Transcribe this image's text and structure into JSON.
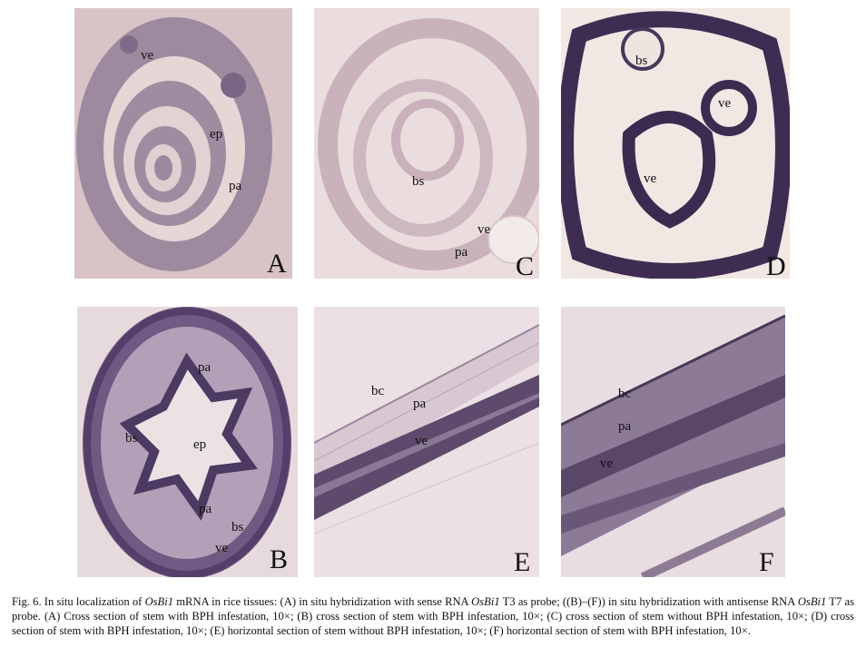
{
  "figure": {
    "panels": {
      "A": {
        "letter": "A",
        "labels": {
          "ve": "ve",
          "ep": "ep",
          "pa": "pa"
        }
      },
      "C": {
        "letter": "C",
        "labels": {
          "bs": "bs",
          "ve": "ve",
          "pa": "pa"
        }
      },
      "D": {
        "letter": "D",
        "labels": {
          "bs": "bs",
          "ve1": "ve",
          "ve2": "ve"
        }
      },
      "B": {
        "letter": "B",
        "labels": {
          "pa1": "pa",
          "bs1": "bs",
          "ep": "ep",
          "pa2": "pa",
          "bs2": "bs",
          "ve": "ve"
        }
      },
      "E": {
        "letter": "E",
        "labels": {
          "bc": "bc",
          "pa": "pa",
          "ve": "ve"
        }
      },
      "F": {
        "letter": "F",
        "labels": {
          "bc": "bc",
          "pa": "pa",
          "ve": "ve"
        }
      }
    },
    "caption": {
      "p1": "Fig. 6. In situ localization of ",
      "gene1": "OsBi1",
      "p2": " mRNA in rice tissues: (A) in situ hybridization with sense RNA ",
      "gene2": "OsBi1",
      "p3": " T3 as probe; ((B)–(F)) in situ hybridization with antisense RNA ",
      "gene3": "OsBi1",
      "p4": " T7 as probe. (A) Cross section of stem with BPH infestation, 10×; (B) cross section of stem with BPH infestation, 10×; (C) cross section of stem without BPH infestation, 10×; (D) cross section of stem with BPH infestation, 10×; (E) horizontal section of stem without BPH infestation, 10×; (F) horizontal section of stem with BPH infestation, 10×."
    }
  }
}
